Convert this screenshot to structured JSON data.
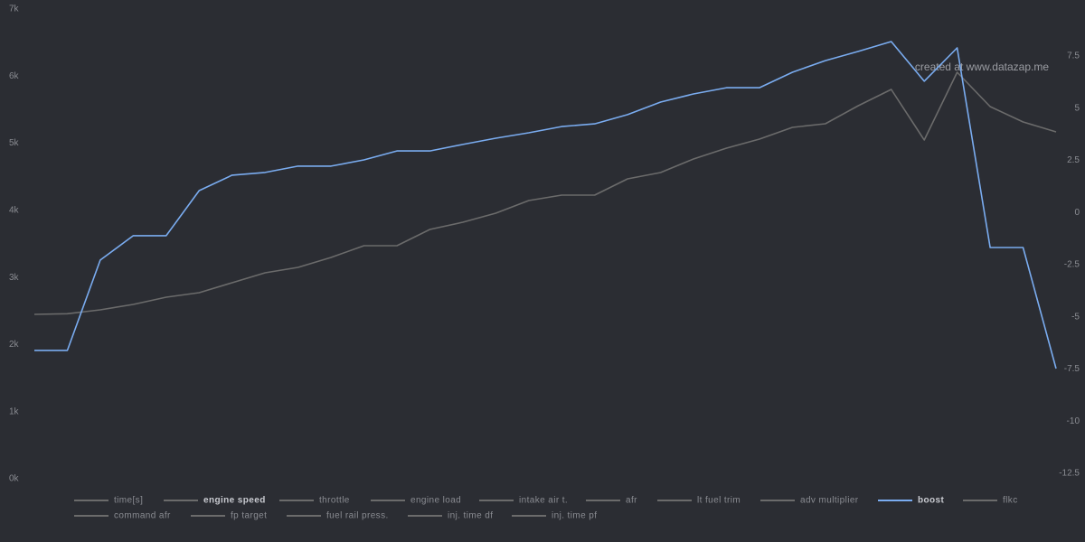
{
  "chart_data": {
    "type": "line",
    "annotation": "created at www.datazap.me",
    "categories": [
      null,
      null,
      null,
      null,
      null,
      null,
      null,
      null,
      null,
      null,
      null,
      null,
      null,
      null,
      null,
      null,
      null,
      null,
      null,
      null,
      null,
      null,
      null,
      null,
      null,
      null,
      null,
      null,
      null,
      null,
      null,
      null
    ],
    "ylim": [
      0,
      7000
    ],
    "yticks": [
      {
        "value": 0,
        "label": "0k"
      },
      {
        "value": 1000,
        "label": "1k"
      },
      {
        "value": 2000,
        "label": "2k"
      },
      {
        "value": 3000,
        "label": "3k"
      },
      {
        "value": 4000,
        "label": "4k"
      },
      {
        "value": 5000,
        "label": "5k"
      },
      {
        "value": 6000,
        "label": "6k"
      },
      {
        "value": 7000,
        "label": "7k"
      }
    ],
    "y2lim": [
      -12.76,
      9.75
    ],
    "y2ticks": [
      -12.5,
      -10,
      -7.5,
      -5,
      -2.5,
      0,
      2.5,
      5,
      7.5
    ],
    "series": [
      {
        "name": "time[s]",
        "color": "#6b6b6b"
      },
      {
        "name": "engine speed",
        "color": "#6b6b6b",
        "values": [
          2450,
          2460,
          2517,
          2598,
          2706,
          2773,
          2921,
          3069,
          3150,
          3298,
          3473,
          3473,
          3715,
          3823,
          3958,
          4146,
          4227,
          4227,
          4469,
          4563,
          4765,
          4927,
          5062,
          5237,
          5290,
          5560,
          5802,
          5048,
          6058,
          5546,
          5317,
          5169
        ]
      },
      {
        "name": "throttle",
        "color": "#6b6b6b"
      },
      {
        "name": "engine load",
        "color": "#6b6b6b"
      },
      {
        "name": "intake air t.",
        "color": "#6b6b6b"
      },
      {
        "name": "afr",
        "color": "#6b6b6b"
      },
      {
        "name": "lt fuel trim",
        "color": "#6b6b6b"
      },
      {
        "name": "adv multiplier",
        "color": "#6b6b6b"
      },
      {
        "name": "boost",
        "color": "#7aacf0",
        "axis": "y2",
        "values": [
          -6.61,
          -6.61,
          -2.28,
          -1.11,
          -1.11,
          1.05,
          1.79,
          1.92,
          2.22,
          2.22,
          2.52,
          2.95,
          2.95,
          3.26,
          3.56,
          3.82,
          4.12,
          4.25,
          4.69,
          5.29,
          5.68,
          5.98,
          5.98,
          6.72,
          7.28,
          7.72,
          8.19,
          6.29,
          7.89,
          -1.68,
          -1.68,
          -7.48
        ]
      },
      {
        "name": "flkc",
        "color": "#6b6b6b"
      },
      {
        "name": "command afr",
        "color": "#6b6b6b"
      },
      {
        "name": "fp target",
        "color": "#6b6b6b"
      },
      {
        "name": "fuel rail press.",
        "color": "#6b6b6b"
      },
      {
        "name": "inj. time df",
        "color": "#6b6b6b"
      },
      {
        "name": "inj. time pf",
        "color": "#6b6b6b"
      }
    ]
  }
}
